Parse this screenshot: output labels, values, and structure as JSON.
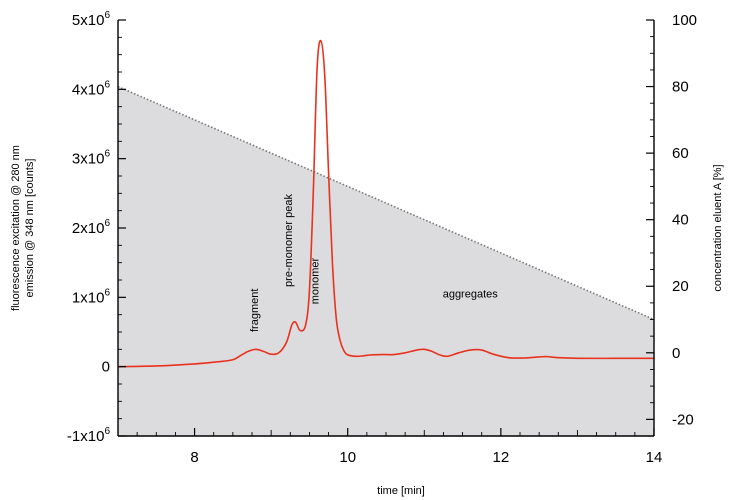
{
  "chart_data": {
    "type": "line",
    "title": "",
    "xlabel": "time [min]",
    "ylabel_left_line1": "fluorescence excitation @ 280 nm",
    "ylabel_left_line2": "emission @ 348 nm [counts]",
    "ylabel_right": "concentration eluent A [%]",
    "xlim": [
      7,
      14
    ],
    "ylim_left": [
      -1000000,
      5000000
    ],
    "ylim_right": [
      -25,
      100
    ],
    "x_ticks": [
      8,
      10,
      12,
      14
    ],
    "x_tick_labels": [
      "8",
      "10",
      "12",
      "14"
    ],
    "y_left_ticks": [
      -1000000,
      0,
      1000000,
      2000000,
      3000000,
      4000000,
      5000000
    ],
    "y_left_tick_labels": [
      {
        "base": "-1x10",
        "exp": "6"
      },
      {
        "base": "0",
        "exp": ""
      },
      {
        "base": "1x10",
        "exp": "6"
      },
      {
        "base": "2x10",
        "exp": "6"
      },
      {
        "base": "3x10",
        "exp": "6"
      },
      {
        "base": "4x10",
        "exp": "6"
      },
      {
        "base": "5x10",
        "exp": "6"
      }
    ],
    "y_right_ticks": [
      -20,
      0,
      20,
      40,
      60,
      80,
      100
    ],
    "y_right_tick_labels": [
      "-20",
      "0",
      "20",
      "40",
      "60",
      "80",
      "100"
    ],
    "series": [
      {
        "axis": "left",
        "color": "#e8321e",
        "x": [
          7.0,
          7.5,
          8.0,
          8.3,
          8.5,
          8.6,
          8.7,
          8.8,
          8.9,
          9.0,
          9.1,
          9.2,
          9.27,
          9.32,
          9.38,
          9.45,
          9.5,
          9.55,
          9.6,
          9.65,
          9.7,
          9.75,
          9.8,
          9.85,
          9.9,
          9.95,
          10.0,
          10.1,
          10.2,
          10.3,
          10.45,
          10.6,
          10.75,
          10.9,
          11.0,
          11.1,
          11.2,
          11.3,
          11.45,
          11.6,
          11.75,
          11.9,
          12.1,
          12.3,
          12.5,
          12.6,
          12.75,
          13.0,
          13.5,
          14.0
        ],
        "y": [
          0,
          10000,
          40000,
          70000,
          100000,
          160000,
          220000,
          250000,
          220000,
          180000,
          200000,
          350000,
          600000,
          640000,
          520000,
          600000,
          1100000,
          2500000,
          4300000,
          4700000,
          4200000,
          2800000,
          1500000,
          700000,
          380000,
          230000,
          170000,
          150000,
          155000,
          170000,
          175000,
          175000,
          200000,
          240000,
          250000,
          220000,
          170000,
          150000,
          200000,
          240000,
          240000,
          180000,
          130000,
          125000,
          140000,
          145000,
          130000,
          120000,
          120000,
          120000
        ]
      },
      {
        "axis": "right",
        "name_hidden": "",
        "color": "#888888",
        "style": "dotted-with-gray-fill",
        "x": [
          7,
          14
        ],
        "y": [
          80,
          10
        ]
      }
    ],
    "annotations": [
      {
        "text": "fragment",
        "x": 8.83,
        "y": 500000,
        "rotate": -90
      },
      {
        "text": "pre-monomer peak",
        "x": 9.27,
        "y": 1150000,
        "rotate": -90
      },
      {
        "text": "monomer",
        "x": 9.62,
        "y": 900000,
        "rotate": -90
      },
      {
        "text": "aggregates",
        "x": 11.6,
        "y": 1000000,
        "rotate": 0
      }
    ],
    "grid": false,
    "legend": "none",
    "fill_color": "#dcdcde"
  }
}
